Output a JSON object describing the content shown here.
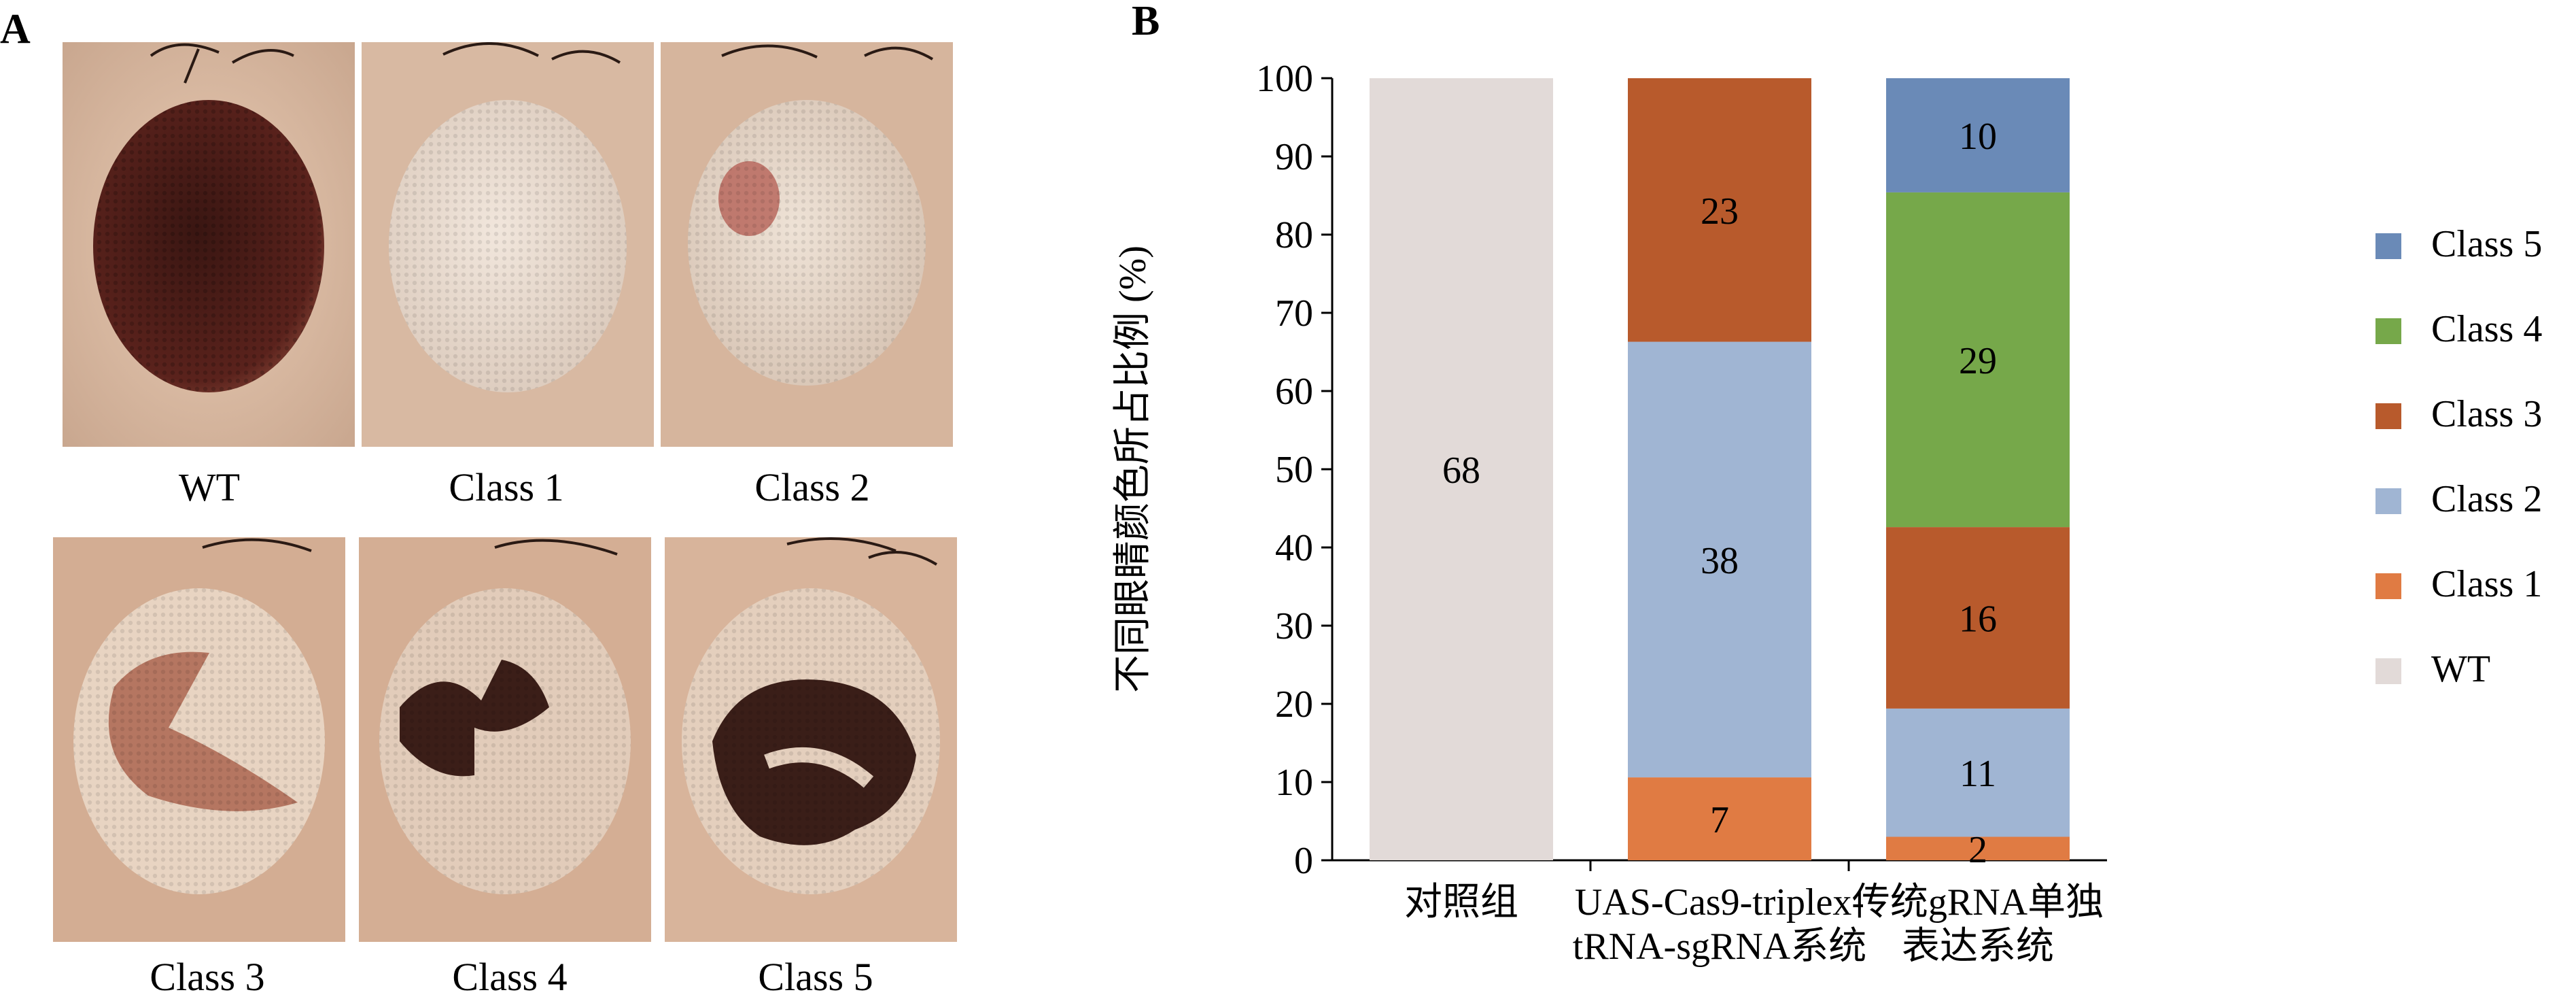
{
  "panel_a": {
    "letter": "A",
    "images": [
      {
        "label": "WT",
        "phenotype": "fully-pigmented-eye"
      },
      {
        "label": "Class 1",
        "phenotype": "white-eye"
      },
      {
        "label": "Class 2",
        "phenotype": "small-red-patch"
      },
      {
        "label": "Class 3",
        "phenotype": "partial-red-mosaic"
      },
      {
        "label": "Class 4",
        "phenotype": "dark-mosaic"
      },
      {
        "label": "Class 5",
        "phenotype": "large-dark-mosaic"
      }
    ]
  },
  "panel_b": {
    "letter": "B"
  },
  "chart_data": {
    "type": "bar",
    "stacked": true,
    "categories": [
      "对照组",
      "UAS-Cas9-triplex-tRNA-sgRNA系统",
      "传统gRNA单独表达系统"
    ],
    "category_lines": [
      [
        "对照组"
      ],
      [
        "UAS-Cas9-triplex-",
        "tRNA-sgRNA系统"
      ],
      [
        "传统gRNA单独",
        "表达系统"
      ]
    ],
    "series": [
      {
        "name": "WT",
        "color": "#e2dad8",
        "values": [
          100,
          0,
          0
        ],
        "labels": [
          "68",
          "",
          ""
        ]
      },
      {
        "name": "Class 1",
        "color": "#e07b43",
        "values": [
          0,
          10.6,
          3.0
        ],
        "labels": [
          "",
          "7",
          "2"
        ]
      },
      {
        "name": "Class 2",
        "color": "#a0b5d3",
        "values": [
          0,
          55.7,
          16.4
        ],
        "labels": [
          "",
          "38",
          "11"
        ]
      },
      {
        "name": "Class 3",
        "color": "#b85a2c",
        "values": [
          0,
          33.7,
          23.2
        ],
        "labels": [
          "",
          "23",
          "16"
        ]
      },
      {
        "name": "Class 4",
        "color": "#76a84a",
        "values": [
          0,
          0,
          42.8
        ],
        "labels": [
          "",
          "",
          "29"
        ]
      },
      {
        "name": "Class 5",
        "color": "#6a8ab7",
        "values": [
          0,
          0,
          14.6
        ],
        "labels": [
          "",
          "",
          "10"
        ]
      }
    ],
    "ylabel": "不同眼睛颜色所占比例 (%)",
    "ylim": [
      0,
      100
    ],
    "yticks": [
      0,
      10,
      20,
      30,
      40,
      50,
      60,
      70,
      80,
      90,
      100
    ],
    "legend_position": "right",
    "legend_order": [
      "Class 5",
      "Class 4",
      "Class 3",
      "Class 2",
      "Class 1",
      "WT"
    ],
    "grid": false
  }
}
